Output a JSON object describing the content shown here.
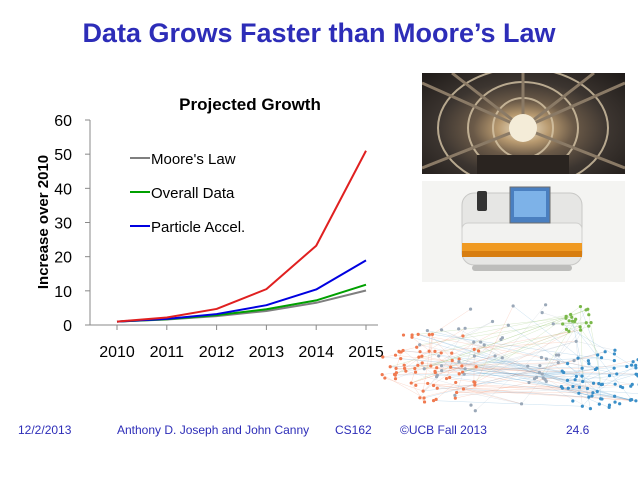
{
  "slide": {
    "title": "Data Grows Faster than Moore’s Law"
  },
  "footer": {
    "date": "12/2/2013",
    "authors": "Anthony D. Joseph and John Canny",
    "course": "CS162",
    "copyright": "©UCB Fall 2013",
    "page": "24.6"
  },
  "chart_data": {
    "type": "line",
    "title": "Projected Growth",
    "xlabel": "",
    "ylabel": "Increase over 2010",
    "x": [
      2010,
      2011,
      2012,
      2013,
      2014,
      2015
    ],
    "ylim": [
      0,
      60
    ],
    "yticks": [
      0,
      10,
      20,
      30,
      40,
      50,
      60
    ],
    "grid": false,
    "legend_position": "top-left",
    "series": [
      {
        "name": "Moore's Law",
        "color": "#7f7f7f",
        "values": [
          1,
          1.6,
          2.6,
          4.1,
          6.5,
          10.1
        ]
      },
      {
        "name": "Overall Data",
        "color": "#00a000",
        "values": [
          1,
          1.7,
          2.9,
          4.6,
          7.2,
          11.8
        ]
      },
      {
        "name": "Particle Accel.",
        "color": "#0000e0",
        "values": [
          1,
          1.8,
          3.2,
          5.8,
          10.4,
          18.9
        ]
      },
      {
        "name": "",
        "color": "#e02020",
        "values": [
          1,
          2.2,
          4.7,
          10.5,
          23.2,
          51
        ]
      }
    ]
  },
  "images": {
    "detector_icon": "particle-detector-photo",
    "sequencer_icon": "dna-sequencer-photo",
    "network_icon": "network-graph-visualization"
  }
}
